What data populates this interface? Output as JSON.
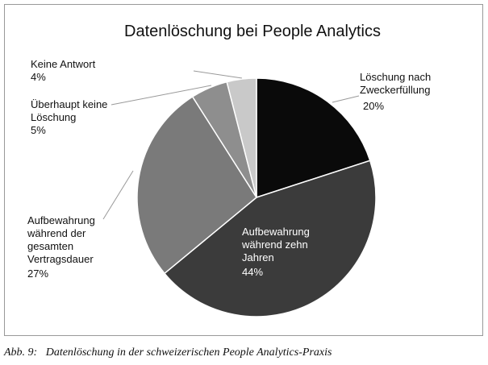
{
  "chart_data": {
    "type": "pie",
    "title": "Datenlöschung bei People Analytics",
    "categories": [
      "Löschung nach\nZweckerfüllung",
      "Aufbewahrung\nwährend zehn\nJahren",
      "Aufbewahrung\nwährend der\ngesamten\nVertragsdauer",
      "Überhaupt keine\nLöschung",
      "Keine Antwort"
    ],
    "values": [
      20,
      44,
      27,
      5,
      4
    ],
    "value_labels": [
      "20%",
      "44%",
      "27%",
      "5%",
      "4%"
    ],
    "colors": [
      "#0a0a0a",
      "#3b3b3b",
      "#7a7a7a",
      "#8e8e8e",
      "#c9c9c9"
    ]
  },
  "caption": "Abb. 9:   Datenlöschung in der schweizerischen People Analytics-Praxis"
}
